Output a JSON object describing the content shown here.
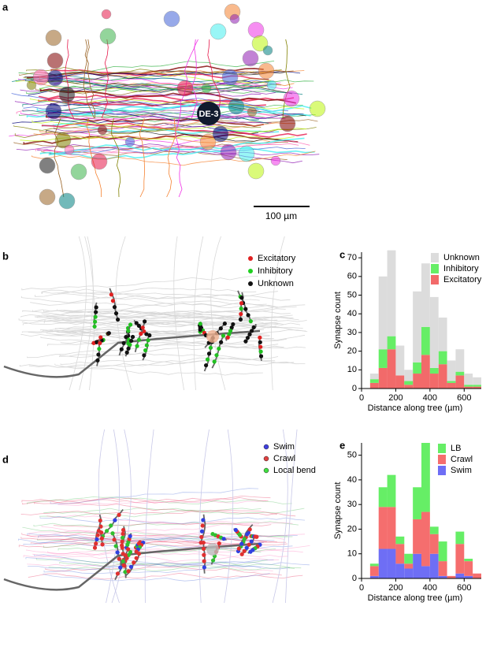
{
  "panels": {
    "a": {
      "label": "a",
      "neuron": "DE-3",
      "scale_bar": "100 µm"
    },
    "b": {
      "label": "b",
      "legend": [
        "Excitatory",
        "Inhibitory",
        "Unknown"
      ]
    },
    "d": {
      "label": "d",
      "legend": [
        "Swim",
        "Crawl",
        "Local bend"
      ]
    }
  },
  "chart_data": [
    {
      "type": "histogram",
      "panel": "c",
      "x_label": "Distance along tree (µm)",
      "y_label": "Synapse count",
      "bins": [
        50,
        100,
        150,
        200,
        250,
        300,
        350,
        400,
        450,
        500,
        550,
        600,
        650,
        700
      ],
      "series": [
        {
          "name": "Excitatory",
          "color": "#f26a6a",
          "values": [
            3,
            11,
            21,
            7,
            2,
            8,
            18,
            8,
            13,
            3,
            7,
            1,
            1
          ]
        },
        {
          "name": "Inhibitory",
          "color": "#66ee66",
          "values": [
            2,
            10,
            7,
            0,
            2,
            6,
            15,
            3,
            7,
            1,
            2,
            1,
            1
          ]
        },
        {
          "name": "Unknown",
          "color": "#dcdcdc",
          "values": [
            3,
            39,
            46,
            16,
            6,
            38,
            34,
            38,
            18,
            11,
            12,
            6,
            4
          ]
        }
      ],
      "xlim": [
        0,
        700
      ],
      "xticks": [
        0,
        200,
        400,
        600
      ],
      "ylim": [
        0,
        73
      ],
      "yticks": [
        0,
        10,
        20,
        30,
        40,
        50,
        60,
        70
      ]
    },
    {
      "type": "histogram",
      "panel": "e",
      "x_label": "Distance along tree (µm)",
      "y_label": "Synapse count",
      "bins": [
        50,
        100,
        150,
        200,
        250,
        300,
        350,
        400,
        450,
        500,
        550,
        600,
        650,
        700
      ],
      "series": [
        {
          "name": "Swim",
          "color": "#6e6ef5",
          "values": [
            1,
            12,
            12,
            6,
            4,
            10,
            5,
            10,
            1,
            0,
            2,
            1,
            0
          ]
        },
        {
          "name": "Crawl",
          "color": "#f56e6e",
          "values": [
            4,
            17,
            17,
            8,
            2,
            14,
            22,
            8,
            6,
            1,
            12,
            6,
            2
          ]
        },
        {
          "name": "LB",
          "color": "#66ee66",
          "values": [
            1,
            8,
            13,
            3,
            4,
            13,
            28,
            3,
            8,
            0,
            5,
            1,
            0
          ]
        }
      ],
      "xlim": [
        0,
        700
      ],
      "xticks": [
        0,
        200,
        400,
        600
      ],
      "ylim": [
        0,
        55
      ],
      "yticks": [
        0,
        10,
        20,
        30,
        40,
        50
      ]
    }
  ]
}
